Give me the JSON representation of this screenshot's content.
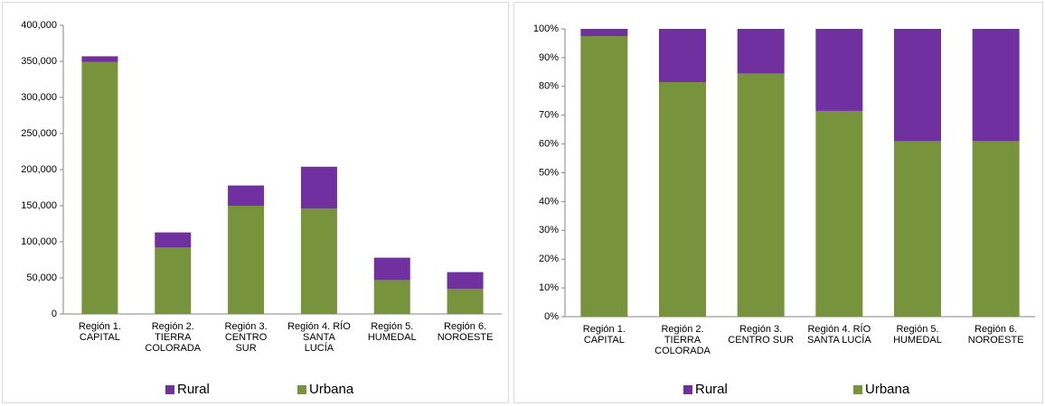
{
  "chart_data": [
    {
      "type": "stacked_bar",
      "categories": [
        [
          "Región 1.",
          "CAPITAL"
        ],
        [
          "Región 2.",
          "TIERRA",
          "COLORADA"
        ],
        [
          "Región 3.",
          "CENTRO",
          "SUR"
        ],
        [
          "Región 4. RÍO",
          "SANTA",
          "LUCÍA"
        ],
        [
          "Región 5.",
          "HUMEDAL"
        ],
        [
          "Región 6.",
          "NOROESTE"
        ]
      ],
      "series": [
        {
          "name": "Rural",
          "color": "#7030a0",
          "values": [
            8000,
            21000,
            28000,
            58000,
            31000,
            23000
          ]
        },
        {
          "name": "Urbana",
          "color": "#77933c",
          "values": [
            349000,
            92000,
            150000,
            146000,
            47000,
            35000
          ]
        }
      ],
      "ylim": [
        0,
        400000
      ],
      "yticks": [
        0,
        {
          "value": 50000,
          "label": "50,000"
        },
        {
          "value": 100000,
          "label": "100,000"
        },
        {
          "value": 150000,
          "label": "150,000"
        },
        {
          "value": 200000,
          "label": "200,000"
        },
        {
          "value": 250000,
          "label": "250,000"
        },
        {
          "value": 300000,
          "label": "300,000"
        },
        {
          "value": 350000,
          "label": "350,000"
        },
        {
          "value": 400000,
          "label": "400,000"
        }
      ],
      "legend": "bottom"
    },
    {
      "type": "stacked_bar",
      "categories": [
        [
          "Región 1.",
          "CAPITAL"
        ],
        [
          "Región 2.",
          "TIERRA",
          "COLORADA"
        ],
        [
          "Región 3.",
          "CENTRO SUR"
        ],
        [
          "Región 4. RÍO",
          "SANTA LUCÍA"
        ],
        [
          "Región 5.",
          "HUMEDAL"
        ],
        [
          "Región 6.",
          "NOROESTE"
        ]
      ],
      "series": [
        {
          "name": "Rural",
          "color": "#7030a0",
          "values": [
            2.5,
            18.5,
            15.5,
            28.5,
            39,
            39
          ]
        },
        {
          "name": "Urbana",
          "color": "#77933c",
          "values": [
            97.5,
            81.5,
            84.5,
            71.5,
            61,
            61
          ]
        }
      ],
      "ylim": [
        0,
        100
      ],
      "yticks": [
        {
          "value": 0,
          "label": "0%"
        },
        {
          "value": 10,
          "label": "10%"
        },
        {
          "value": 20,
          "label": "20%"
        },
        {
          "value": 30,
          "label": "30%"
        },
        {
          "value": 40,
          "label": "40%"
        },
        {
          "value": 50,
          "label": "50%"
        },
        {
          "value": 60,
          "label": "60%"
        },
        {
          "value": 70,
          "label": "70%"
        },
        {
          "value": 80,
          "label": "80%"
        },
        {
          "value": 90,
          "label": "90%"
        },
        {
          "value": 100,
          "label": "100%"
        }
      ],
      "legend": "bottom"
    }
  ]
}
